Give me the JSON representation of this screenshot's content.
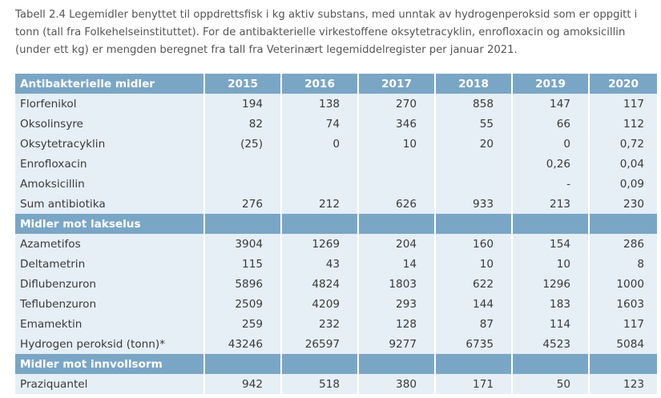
{
  "caption": "Tabell 2.4 Legemidler benyttet til oppdrettsfisk i kg aktiv substans, med unntak av hydrogenperoksid som er oppgitt i tonn (tall fra Folkehelseinstituttet). For de antibakterielle virkestoffene oksytetracyklin, enrofloxacin og amoksicillin (under ett kg) er mengden beregnet fra tall fra Veterinært legemiddelregister per januar 2021.",
  "header": {
    "label": "Antibakterielle midler",
    "years": [
      "2015",
      "2016",
      "2017",
      "2018",
      "2019",
      "2020"
    ]
  },
  "sections": [
    {
      "rows": [
        {
          "label": "Florfenikol",
          "values": [
            "194",
            "138",
            "270",
            "858",
            "147",
            "117"
          ]
        },
        {
          "label": "Oksolinsyre",
          "values": [
            "82",
            "74",
            "346",
            "55",
            "66",
            "112"
          ]
        },
        {
          "label": "Oksytetracyklin",
          "values": [
            "(25)",
            "0",
            "10",
            "20",
            "0",
            "0,72"
          ]
        },
        {
          "label": "Enrofloxacin",
          "values": [
            "",
            "",
            "",
            "",
            "0,26",
            "0,04"
          ]
        },
        {
          "label": "Amoksicillin",
          "values": [
            "",
            "",
            "",
            "",
            "-",
            "0,09"
          ]
        },
        {
          "label": "Sum antibiotika",
          "values": [
            "276",
            "212",
            "626",
            "933",
            "213",
            "230"
          ]
        }
      ]
    },
    {
      "title": "Midler mot lakselus",
      "rows": [
        {
          "label": "Azametifos",
          "values": [
            "3904",
            "1269",
            "204",
            "160",
            "154",
            "286"
          ]
        },
        {
          "label": "Deltametrin",
          "values": [
            "115",
            "43",
            "14",
            "10",
            "10",
            "8"
          ]
        },
        {
          "label": "Diflubenzuron",
          "values": [
            "5896",
            "4824",
            "1803",
            "622",
            "1296",
            "1000"
          ]
        },
        {
          "label": "Teflubenzuron",
          "values": [
            "2509",
            "4209",
            "293",
            "144",
            "183",
            "1603"
          ]
        },
        {
          "label": "Emamektin",
          "values": [
            "259",
            "232",
            "128",
            "87",
            "114",
            "117"
          ]
        },
        {
          "label": "Hydrogen peroksid (tonn)*",
          "values": [
            "43246",
            "26597",
            "9277",
            "6735",
            "4523",
            "5084"
          ]
        }
      ]
    },
    {
      "title": "Midler mot innvollsorm",
      "rows": [
        {
          "label": "Praziquantel",
          "values": [
            "942",
            "518",
            "380",
            "171",
            "50",
            "123"
          ]
        }
      ]
    }
  ]
}
